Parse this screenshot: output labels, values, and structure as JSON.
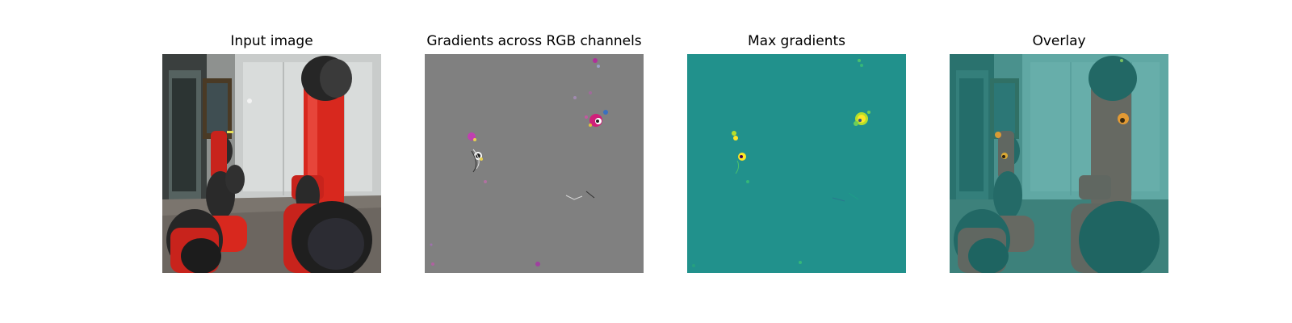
{
  "figure": {
    "panels": [
      {
        "title": "Input image"
      },
      {
        "title": "Gradients across RGB channels"
      },
      {
        "title": "Max gradients"
      },
      {
        "title": "Overlay"
      }
    ]
  },
  "colors": {
    "gradient_background": "#808080",
    "max_gradient_background": "#21918c",
    "highlight": "#fde725",
    "robot_red": "#d8281e",
    "overlay_tint": "#2a8f8a"
  }
}
